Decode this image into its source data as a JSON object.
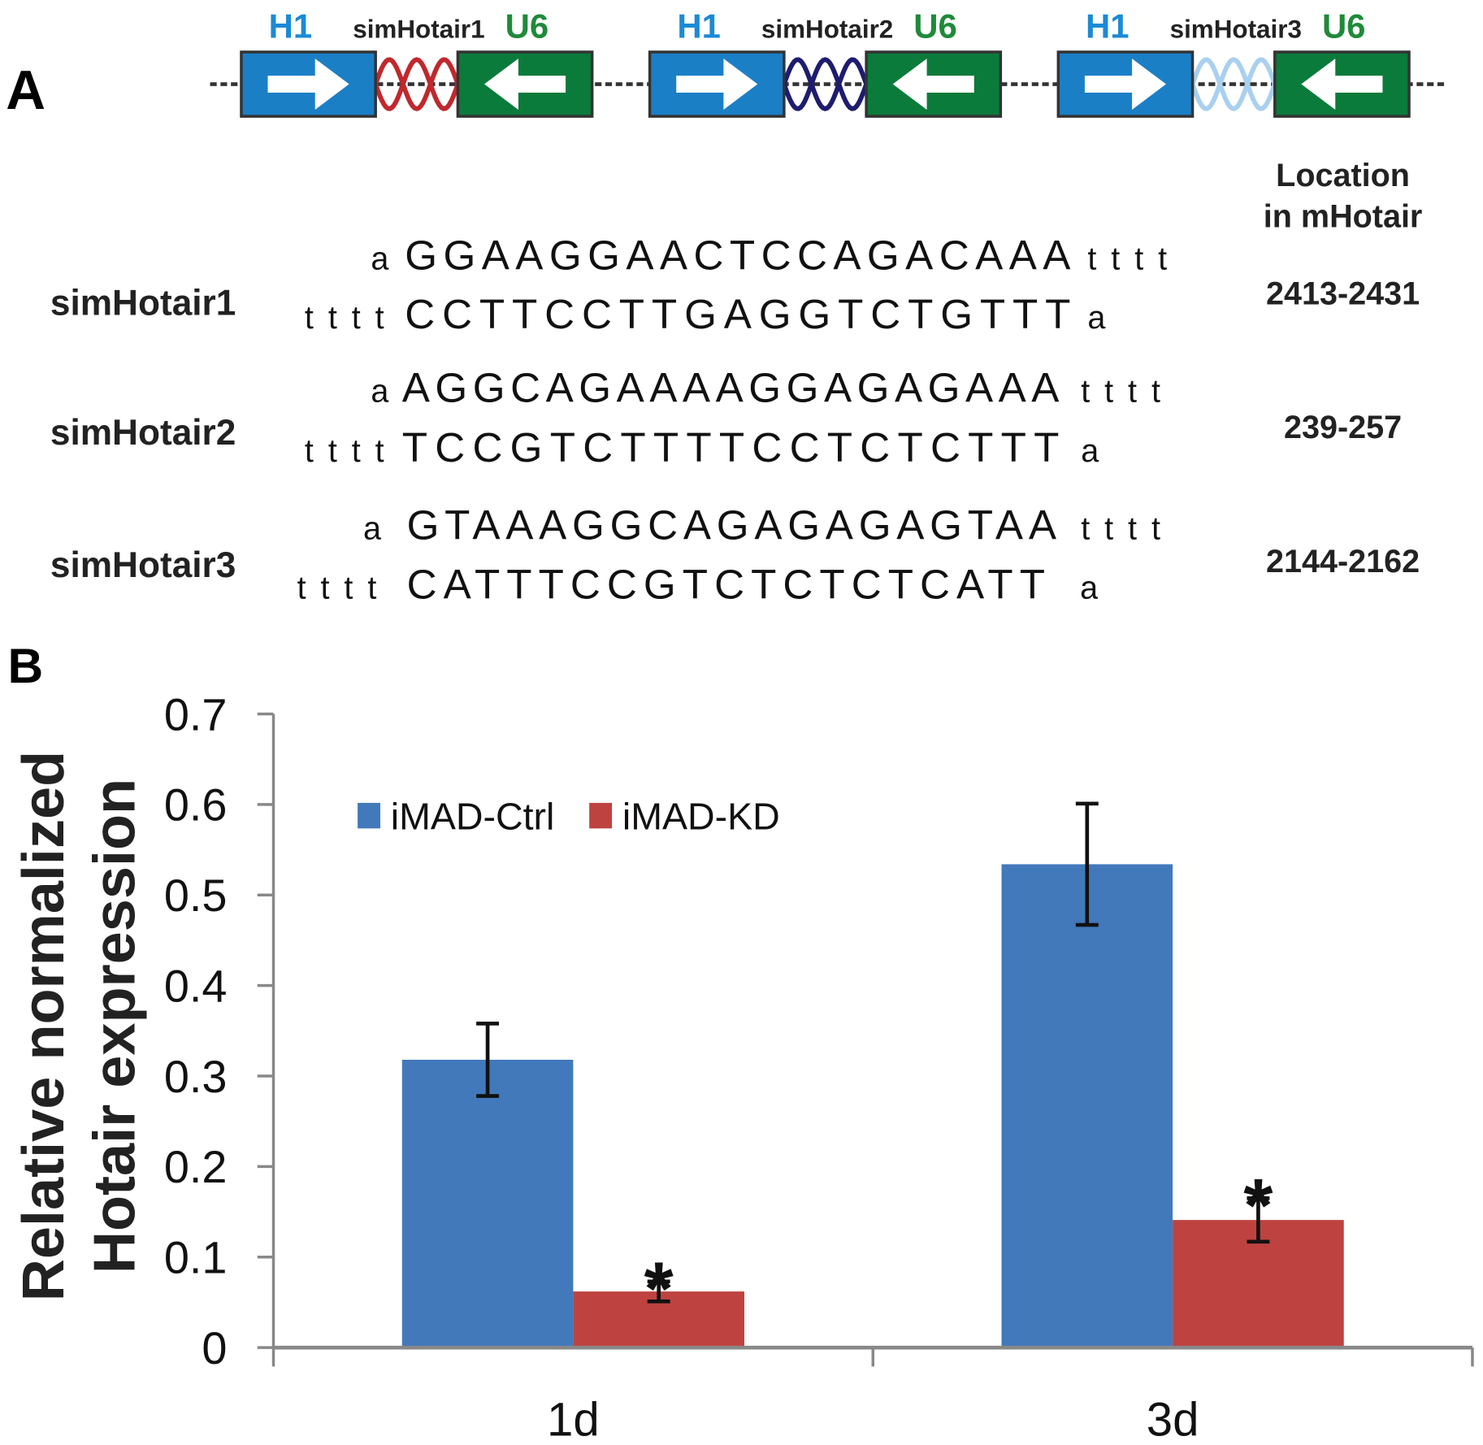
{
  "panel_a": {
    "label": "A",
    "constructs": [
      {
        "promoter_left": "H1",
        "name": "simHotair1",
        "promoter_right": "U6",
        "helix_color": "#c0282d"
      },
      {
        "promoter_left": "H1",
        "name": "simHotair2",
        "promoter_right": "U6",
        "helix_color": "#1e1c6e"
      },
      {
        "promoter_left": "H1",
        "name": "simHotair3",
        "promoter_right": "U6",
        "helix_color": "#a9d0ef"
      }
    ],
    "location_header": [
      "Location",
      "in mHotair"
    ],
    "sequences": [
      {
        "name": "simHotair1",
        "top_prefix": "a",
        "top_seq": "GGAAGGAACTCCAGACAAA",
        "top_suffix": "tttt",
        "bottom_prefix": "tttt",
        "bottom_seq": "CCTTCCTTGAGGTCTGTTT",
        "bottom_suffix": "a",
        "location": "2413-2431"
      },
      {
        "name": "simHotair2",
        "top_prefix": "a",
        "top_seq": "AGGCAGAAAAGGAGAGAAA",
        "top_suffix": "tttt",
        "bottom_prefix": "tttt",
        "bottom_seq": "TCCGTCTTTTCCTCTCTTT",
        "bottom_suffix": "a",
        "location": "239-257"
      },
      {
        "name": "simHotair3",
        "top_prefix": "a",
        "top_seq": "GTAAAGGCAGAGAGAGTAA",
        "top_suffix": "tttt",
        "bottom_prefix": "tttt",
        "bottom_seq": "CATTTCCGTCTCTCTCATT",
        "bottom_suffix": "a",
        "location": "2144-2162"
      }
    ],
    "colors": {
      "h1": "#1b7fc6",
      "u6": "#0b7b3b",
      "h1_text": "#1b8ad6",
      "u6_text": "#1f8a3a"
    }
  },
  "panel_b": {
    "label": "B"
  },
  "chart_data": {
    "type": "bar",
    "categories": [
      "1d",
      "3d"
    ],
    "series": [
      {
        "name": "iMAD-Ctrl",
        "color": "#4279bb",
        "values": [
          0.318,
          0.534
        ],
        "errors": [
          0.04,
          0.067
        ]
      },
      {
        "name": "iMAD-KD",
        "color": "#be4340",
        "values": [
          0.062,
          0.141
        ],
        "errors": [
          0.011,
          0.024
        ]
      }
    ],
    "annotations": [
      {
        "category": "1d",
        "series": "iMAD-KD",
        "text": "*"
      },
      {
        "category": "3d",
        "series": "iMAD-KD",
        "text": "*"
      }
    ],
    "ylabel": [
      "Relative normalized",
      "Hotair expression"
    ],
    "xlabel": "",
    "ylim": [
      0,
      0.7
    ],
    "yticks": [
      "0",
      "0.1",
      "0.2",
      "0.3",
      "0.4",
      "0.5",
      "0.6",
      "0.7"
    ],
    "legend_position": "top-left",
    "grid": false
  }
}
